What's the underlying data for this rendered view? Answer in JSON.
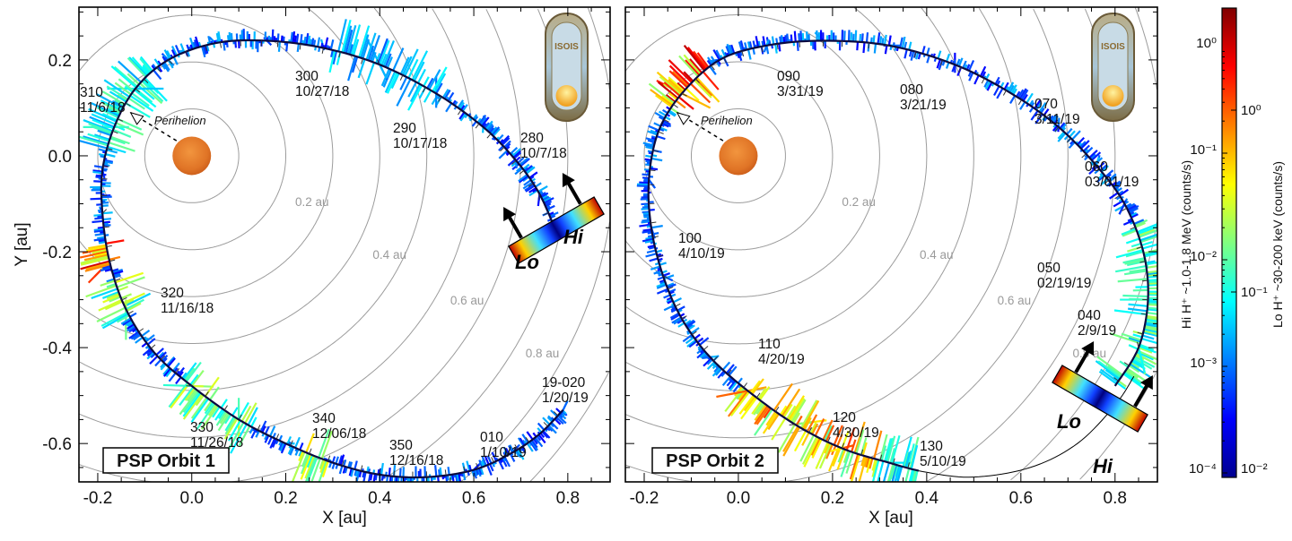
{
  "chart_data": [
    {
      "type": "scatter",
      "title": "PSP Orbit 1",
      "xlabel": "X [au]",
      "ylabel": "Y [au]",
      "xlim": [
        -0.24,
        0.89
      ],
      "ylim": [
        -0.68,
        0.31
      ],
      "xticks": [
        "-0.2",
        "0.0",
        "0.2",
        "0.4",
        "0.6",
        "0.8"
      ],
      "yticks": [
        "0.2",
        "0.0",
        "-0.2",
        "-0.4",
        "-0.6"
      ],
      "ring_labels": [
        "0.2 au",
        "0.4 au",
        "0.6 au",
        "0.8 au"
      ],
      "ring_radii_au": [
        0.1,
        0.2,
        0.3,
        0.4,
        0.5,
        0.6,
        0.7,
        0.8,
        0.9,
        1.0
      ],
      "perihelion_label": "Perihelion",
      "legend_lo": "Lo",
      "legend_hi": "Hi",
      "annotations": [
        {
          "doy": "310",
          "date": "11/6/18"
        },
        {
          "doy": "300",
          "date": "10/27/18"
        },
        {
          "doy": "290",
          "date": "10/17/18"
        },
        {
          "doy": "280",
          "date": "10/7/18"
        },
        {
          "doy": "320",
          "date": "11/16/18"
        },
        {
          "doy": "330",
          "date": "11/26/18"
        },
        {
          "doy": "340",
          "date": "12/06/18"
        },
        {
          "doy": "350",
          "date": "12/16/18"
        },
        {
          "doy": "010",
          "date": "1/10/19"
        },
        {
          "doy": "19-020",
          "date": "1/20/19"
        }
      ],
      "orbit": [
        [
          0.78,
          -0.17
        ],
        [
          0.74,
          -0.08
        ],
        [
          0.69,
          -0.01
        ],
        [
          0.62,
          0.06
        ],
        [
          0.52,
          0.13
        ],
        [
          0.4,
          0.19
        ],
        [
          0.28,
          0.225
        ],
        [
          0.16,
          0.24
        ],
        [
          0.05,
          0.235
        ],
        [
          -0.05,
          0.2
        ],
        [
          -0.12,
          0.14
        ],
        [
          -0.165,
          0.06
        ],
        [
          -0.19,
          -0.03
        ],
        [
          -0.19,
          -0.12
        ],
        [
          -0.175,
          -0.22
        ],
        [
          -0.14,
          -0.32
        ],
        [
          -0.08,
          -0.41
        ],
        [
          0.0,
          -0.48
        ],
        [
          0.1,
          -0.55
        ],
        [
          0.2,
          -0.6
        ],
        [
          0.3,
          -0.64
        ],
        [
          0.4,
          -0.665
        ],
        [
          0.5,
          -0.67
        ],
        [
          0.6,
          -0.655
        ],
        [
          0.68,
          -0.62
        ],
        [
          0.74,
          -0.58
        ],
        [
          0.79,
          -0.53
        ]
      ],
      "grid": false
    },
    {
      "type": "scatter",
      "title": "PSP Orbit 2",
      "xlabel": "X [au]",
      "xlim": [
        -0.24,
        0.89
      ],
      "ylim": [
        -0.68,
        0.31
      ],
      "xticks": [
        "-0.2",
        "0.0",
        "0.2",
        "0.4",
        "0.6",
        "0.8"
      ],
      "ring_labels": [
        "0.2 au",
        "0.4 au",
        "0.6 au",
        "0.8 au"
      ],
      "ring_radii_au": [
        0.1,
        0.2,
        0.3,
        0.4,
        0.5,
        0.6,
        0.7,
        0.8,
        0.9,
        1.0
      ],
      "perihelion_label": "Perihelion",
      "legend_lo": "Lo",
      "legend_hi": "Hi",
      "annotations": [
        {
          "doy": "090",
          "date": "3/31/19"
        },
        {
          "doy": "080",
          "date": "3/21/19"
        },
        {
          "doy": "070",
          "date": "3/11/19"
        },
        {
          "doy": "060",
          "date": "03/01/19"
        },
        {
          "doy": "050",
          "date": "02/19/19"
        },
        {
          "doy": "040",
          "date": "2/9/19"
        },
        {
          "doy": "100",
          "date": "4/10/19"
        },
        {
          "doy": "110",
          "date": "4/20/19"
        },
        {
          "doy": "120",
          "date": "4/30/19"
        },
        {
          "doy": "130",
          "date": "5/10/19"
        }
      ],
      "orbit": [
        [
          0.8,
          -0.48
        ],
        [
          0.85,
          -0.4
        ],
        [
          0.87,
          -0.3
        ],
        [
          0.86,
          -0.2
        ],
        [
          0.82,
          -0.1
        ],
        [
          0.76,
          -0.02
        ],
        [
          0.68,
          0.06
        ],
        [
          0.58,
          0.13
        ],
        [
          0.46,
          0.19
        ],
        [
          0.32,
          0.23
        ],
        [
          0.18,
          0.24
        ],
        [
          0.06,
          0.23
        ],
        [
          -0.04,
          0.2
        ],
        [
          -0.12,
          0.13
        ],
        [
          -0.17,
          0.05
        ],
        [
          -0.19,
          -0.05
        ],
        [
          -0.185,
          -0.15
        ],
        [
          -0.16,
          -0.25
        ],
        [
          -0.12,
          -0.34
        ],
        [
          -0.06,
          -0.42
        ],
        [
          0.02,
          -0.49
        ],
        [
          0.12,
          -0.56
        ],
        [
          0.22,
          -0.61
        ],
        [
          0.32,
          -0.64
        ],
        [
          0.4,
          -0.66
        ],
        [
          0.5,
          -0.67
        ],
        [
          0.62,
          -0.65
        ],
        [
          0.72,
          -0.6
        ],
        [
          0.8,
          -0.52
        ],
        [
          0.84,
          -0.46
        ]
      ],
      "grid": false
    }
  ],
  "colorbar": {
    "colormap": "jet",
    "hi_title": "Hi H⁺ ~1.0-1.8 MeV (counts/s)",
    "lo_title": "Lo H⁺ ~30-200 keV  (counts/s)",
    "hi_ticks": [
      "10⁰",
      "10⁻¹",
      "10⁻²",
      "10⁻³",
      "10⁻⁴"
    ],
    "hi_range": [
      0.0001,
      1
    ],
    "lo_ticks": [
      "10⁰",
      "10⁻¹",
      "10⁻²"
    ],
    "lo_range": [
      0.01,
      1
    ],
    "scale": "log"
  },
  "logo_text": "ISOIS"
}
